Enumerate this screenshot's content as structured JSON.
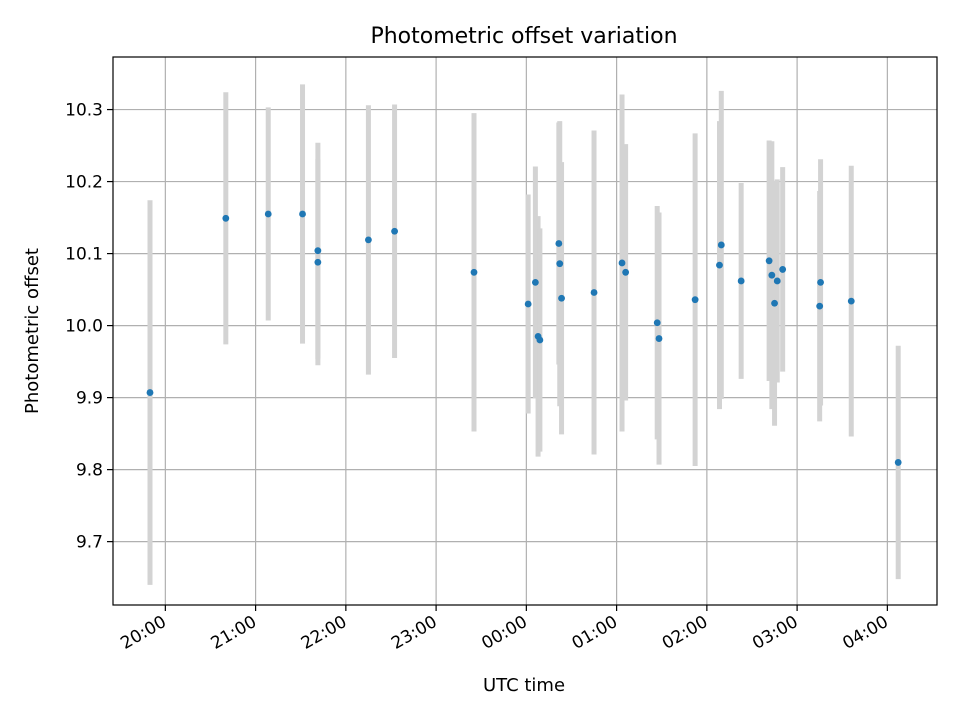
{
  "chart_data": {
    "type": "scatter",
    "title": "Photometric offset variation",
    "xlabel": "UTC time",
    "ylabel": "Photometric offset",
    "x_tick_labels": [
      "20:00",
      "21:00",
      "22:00",
      "23:00",
      "00:00",
      "01:00",
      "02:00",
      "03:00",
      "04:00"
    ],
    "y_tick_labels": [
      "9.7",
      "9.8",
      "9.9",
      "10.0",
      "10.1",
      "10.2",
      "10.3"
    ],
    "x_unit": "UTC hours since 20:00",
    "xlim": [
      -0.58,
      8.55
    ],
    "ylim": [
      9.612,
      10.373
    ],
    "grid": true,
    "colors": {
      "marker": "#1f77b4",
      "errorbar": "#d3d3d3",
      "grid": "#b0b0b0"
    },
    "points": [
      {
        "x": -0.17,
        "y": 9.907,
        "err": 0.267
      },
      {
        "x": 0.67,
        "y": 10.149,
        "err": 0.175
      },
      {
        "x": 1.14,
        "y": 10.155,
        "err": 0.148
      },
      {
        "x": 1.52,
        "y": 10.155,
        "err": 0.18
      },
      {
        "x": 1.69,
        "y": 10.104,
        "err": 0.15
      },
      {
        "x": 1.69,
        "y": 10.088,
        "err": 0.143
      },
      {
        "x": 2.25,
        "y": 10.119,
        "err": 0.187
      },
      {
        "x": 2.54,
        "y": 10.131,
        "err": 0.176
      },
      {
        "x": 3.42,
        "y": 10.074,
        "err": 0.221
      },
      {
        "x": 4.02,
        "y": 10.03,
        "err": 0.152
      },
      {
        "x": 4.1,
        "y": 10.06,
        "err": 0.161
      },
      {
        "x": 4.13,
        "y": 9.985,
        "err": 0.167
      },
      {
        "x": 4.15,
        "y": 9.98,
        "err": 0.155
      },
      {
        "x": 4.36,
        "y": 10.114,
        "err": 0.168
      },
      {
        "x": 4.37,
        "y": 10.086,
        "err": 0.198
      },
      {
        "x": 4.39,
        "y": 10.038,
        "err": 0.189
      },
      {
        "x": 4.75,
        "y": 10.046,
        "err": 0.225
      },
      {
        "x": 5.06,
        "y": 10.087,
        "err": 0.234
      },
      {
        "x": 5.1,
        "y": 10.074,
        "err": 0.178
      },
      {
        "x": 5.45,
        "y": 10.004,
        "err": 0.162
      },
      {
        "x": 5.47,
        "y": 9.982,
        "err": 0.175
      },
      {
        "x": 5.87,
        "y": 10.036,
        "err": 0.231
      },
      {
        "x": 6.14,
        "y": 10.084,
        "err": 0.2
      },
      {
        "x": 6.16,
        "y": 10.112,
        "err": 0.214
      },
      {
        "x": 6.38,
        "y": 10.062,
        "err": 0.136
      },
      {
        "x": 6.69,
        "y": 10.09,
        "err": 0.167
      },
      {
        "x": 6.72,
        "y": 10.07,
        "err": 0.186
      },
      {
        "x": 6.75,
        "y": 10.031,
        "err": 0.17
      },
      {
        "x": 6.78,
        "y": 10.062,
        "err": 0.141
      },
      {
        "x": 6.84,
        "y": 10.078,
        "err": 0.142
      },
      {
        "x": 7.25,
        "y": 10.027,
        "err": 0.16
      },
      {
        "x": 7.26,
        "y": 10.06,
        "err": 0.171
      },
      {
        "x": 7.6,
        "y": 10.034,
        "err": 0.188
      },
      {
        "x": 8.12,
        "y": 9.81,
        "err": 0.162
      }
    ]
  }
}
